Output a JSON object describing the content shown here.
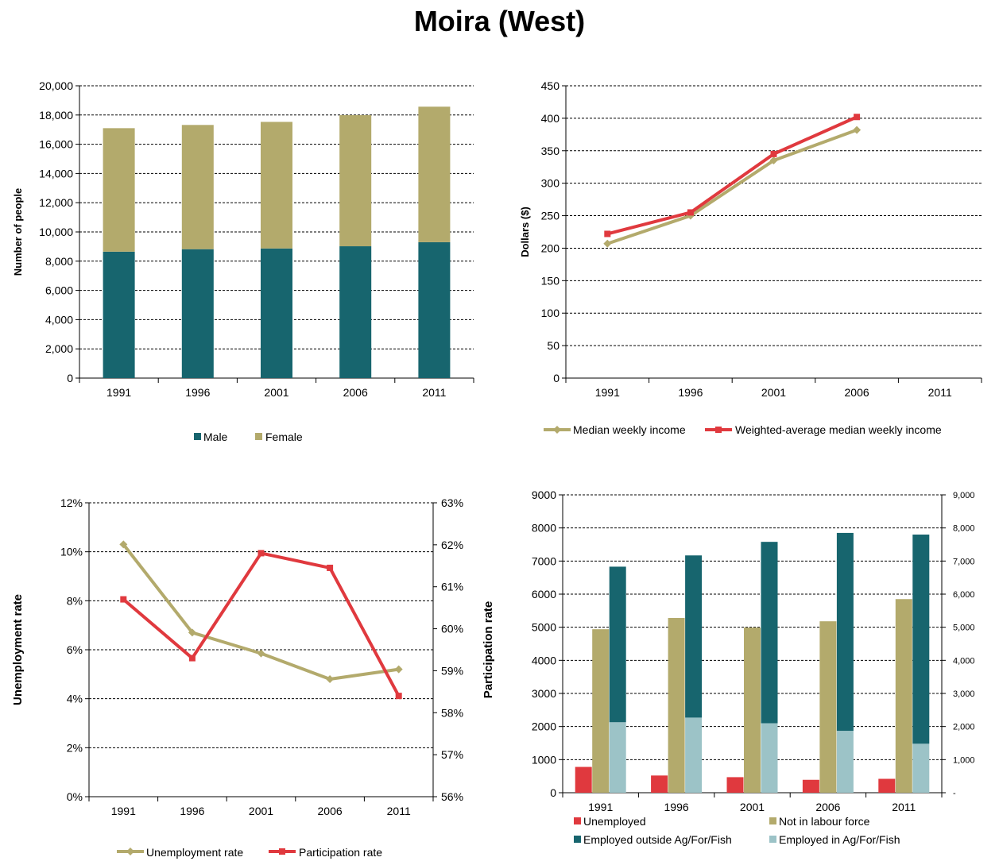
{
  "title": "Moira (West)",
  "colors": {
    "male": "#17656e",
    "female": "#b3aa6c",
    "median_line": "#b3aa6c",
    "weighted_line": "#e0393e",
    "unemployed": "#e0393e",
    "not_in_lf": "#b3aa6c",
    "emp_outside": "#17656e",
    "emp_ag": "#9cc3c7",
    "axis": "#000000",
    "grid": "#000000"
  },
  "chart_data": [
    {
      "id": "population",
      "type": "bar",
      "stacked": true,
      "categories": [
        "1991",
        "1996",
        "2001",
        "2006",
        "2011"
      ],
      "series": [
        {
          "name": "Male",
          "values": [
            8650,
            8820,
            8870,
            9020,
            9300
          ]
        },
        {
          "name": "Female",
          "values": [
            8450,
            8500,
            8660,
            8970,
            9270
          ]
        }
      ],
      "ylabel": "Number of people",
      "ylim": [
        0,
        20000
      ],
      "yticks": [
        "0",
        "2,000",
        "4,000",
        "6,000",
        "8,000",
        "10,000",
        "12,000",
        "14,000",
        "16,000",
        "18,000",
        "20,000"
      ],
      "grid": true,
      "legend": "bottom"
    },
    {
      "id": "income",
      "type": "line",
      "categories": [
        "1991",
        "1996",
        "2001",
        "2006",
        "2011"
      ],
      "series": [
        {
          "name": "Median weekly income",
          "values": [
            207,
            250,
            335,
            382,
            null
          ]
        },
        {
          "name": "Weighted-average median weekly income",
          "values": [
            222,
            255,
            345,
            402,
            null
          ]
        }
      ],
      "ylabel": "Dollars ($)",
      "ylim": [
        0,
        450
      ],
      "yticks": [
        "0",
        "50",
        "100",
        "150",
        "200",
        "250",
        "300",
        "350",
        "400",
        "450"
      ],
      "grid": true,
      "legend": "bottom"
    },
    {
      "id": "rates",
      "type": "line",
      "categories": [
        "1991",
        "1996",
        "2001",
        "2006",
        "2011"
      ],
      "series": [
        {
          "name": "Unemployment rate",
          "axis": "left",
          "values": [
            10.3,
            6.7,
            5.85,
            4.8,
            5.2
          ]
        },
        {
          "name": "Participation rate",
          "axis": "right",
          "values": [
            60.7,
            59.3,
            61.8,
            61.45,
            58.4
          ]
        }
      ],
      "ylabel": "Unemployment rate",
      "ylim": [
        0,
        12
      ],
      "yticks": [
        "0%",
        "2%",
        "4%",
        "6%",
        "8%",
        "10%",
        "12%"
      ],
      "y2label": "Participation rate",
      "y2lim": [
        56,
        63
      ],
      "y2ticks": [
        "56%",
        "57%",
        "58%",
        "59%",
        "60%",
        "61%",
        "62%",
        "63%"
      ],
      "grid": true,
      "legend": "bottom"
    },
    {
      "id": "labour",
      "type": "bar",
      "categories": [
        "1991",
        "1996",
        "2001",
        "2006",
        "2011"
      ],
      "series": [
        {
          "name": "Unemployed",
          "values": [
            780,
            520,
            470,
            390,
            420
          ]
        },
        {
          "name": "Not in labour force",
          "values": [
            4940,
            5280,
            4990,
            5180,
            5850
          ]
        },
        {
          "name": "Employed outside Ag/For/Fish",
          "values": [
            4700,
            4900,
            5480,
            5980,
            6320
          ]
        },
        {
          "name": "Employed in Ag/For/Fish",
          "values": [
            2130,
            2270,
            2100,
            1870,
            1480
          ]
        }
      ],
      "stack_note": "Employed in Ag/For/Fish stacked beneath Employed outside Ag/For/Fish",
      "ylim": [
        0,
        9000
      ],
      "yticks": [
        "0",
        "1000",
        "2000",
        "3000",
        "4000",
        "5000",
        "6000",
        "7000",
        "8000",
        "9000"
      ],
      "y2ticks": [
        "-",
        "1,000",
        "2,000",
        "3,000",
        "4,000",
        "5,000",
        "6,000",
        "7,000",
        "8,000",
        "9,000"
      ],
      "grid": true,
      "legend": "bottom"
    }
  ]
}
